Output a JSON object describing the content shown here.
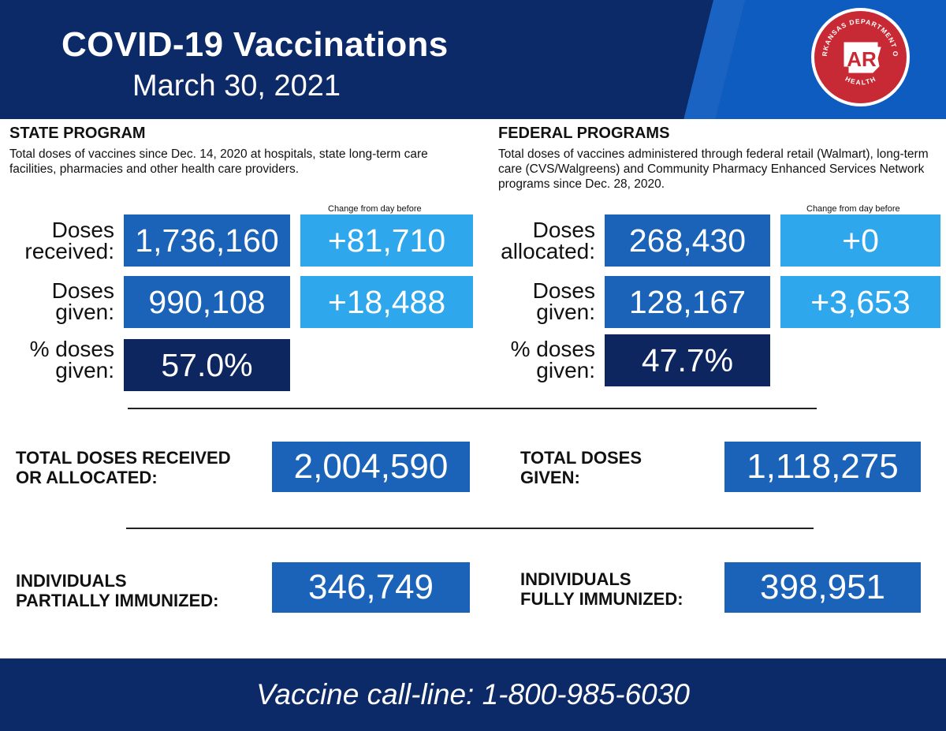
{
  "header": {
    "title": "COVID-19 Vaccinations",
    "date": "March 30, 2021",
    "logo": {
      "initials": "AR",
      "arc_text_top": "ARKANSAS DEPARTMENT OF",
      "arc_text_bottom": "HEALTH",
      "color": "#c82a35"
    }
  },
  "colors": {
    "navy": "#0d2a68",
    "mid_blue": "#1a63b8",
    "light_blue": "#2ea7ec",
    "dark_box": "#0d2660"
  },
  "state": {
    "title": "STATE PROGRAM",
    "description": "Total doses of vaccines since Dec. 14, 2020 at hospitals, state long-term care facilities, pharmacies and other health care providers.",
    "change_label": "Change from day before",
    "rows": [
      {
        "label_line1": "Doses",
        "label_line2": "received:",
        "value": "1,736,160",
        "change": "+81,710"
      },
      {
        "label_line1": "Doses",
        "label_line2": "given:",
        "value": "990,108",
        "change": "+18,488"
      },
      {
        "label_line1": "% doses",
        "label_line2": "given:",
        "value": "57.0%"
      }
    ]
  },
  "federal": {
    "title": "FEDERAL PROGRAMS",
    "description": "Total doses of vaccines administered through federal retail (Walmart), long-term care (CVS/Walgreens) and Community Pharmacy Enhanced Services Network programs since Dec. 28, 2020.",
    "change_label": "Change from day before",
    "rows": [
      {
        "label_line1": "Doses",
        "label_line2": "allocated:",
        "value": "268,430",
        "change": "+0"
      },
      {
        "label_line1": "Doses",
        "label_line2": "given:",
        "value": "128,167",
        "change": "+3,653"
      },
      {
        "label_line1": "% doses",
        "label_line2": "given:",
        "value": "47.7%"
      }
    ]
  },
  "totals": {
    "received": {
      "label_line1": "TOTAL DOSES RECEIVED",
      "label_line2": "OR ALLOCATED:",
      "value": "2,004,590"
    },
    "given": {
      "label_line1": "TOTAL DOSES",
      "label_line2": "GIVEN:",
      "value": "1,118,275"
    }
  },
  "immunized": {
    "partial": {
      "label_line1": "INDIVIDUALS",
      "label_line2": "PARTIALLY IMMUNIZED:",
      "value": "346,749"
    },
    "full": {
      "label_line1": "INDIVIDUALS",
      "label_line2": "FULLY IMMUNIZED:",
      "value": "398,951"
    }
  },
  "footer": {
    "callline": "Vaccine call-line: 1-800-985-6030"
  }
}
